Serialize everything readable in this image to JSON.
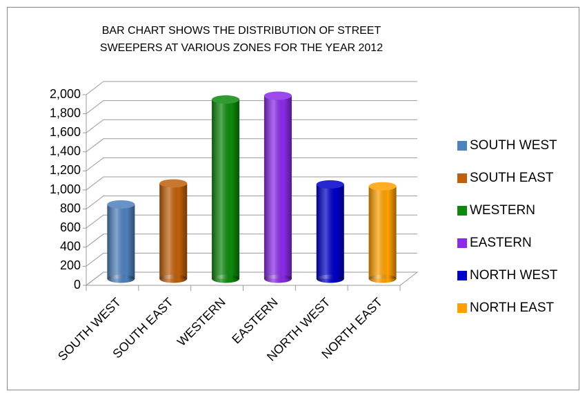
{
  "chart_data": {
    "type": "bar3d",
    "title": [
      "BAR CHART SHOWS THE DISTRIBUTION OF STREET",
      "SWEEPERS AT VARIOUS ZONES FOR THE YEAR 2012"
    ],
    "categories": [
      "SOUTH WEST",
      "SOUTH EAST",
      "WESTERN",
      "EASTERN",
      "NORTH WEST",
      "NORTH EAST"
    ],
    "values": [
      780,
      1000,
      1880,
      1920,
      990,
      970
    ],
    "colors": [
      "#4f81bd",
      "#c0600a",
      "#0d8a0d",
      "#8b2be8",
      "#0000c8",
      "#ffa000"
    ],
    "ylim": [
      0,
      2000
    ],
    "yticks": [
      0,
      200,
      400,
      600,
      800,
      {
        "value": 1000,
        "label": "1,000"
      },
      {
        "value": 1200,
        "label": "1,200"
      },
      {
        "value": 1400,
        "label": "1,400"
      },
      {
        "value": 1600,
        "label": "1,600"
      },
      {
        "value": 1800,
        "label": "1,800"
      },
      {
        "value": 2000,
        "label": "2,000"
      }
    ],
    "grid": true,
    "legend": "right"
  }
}
